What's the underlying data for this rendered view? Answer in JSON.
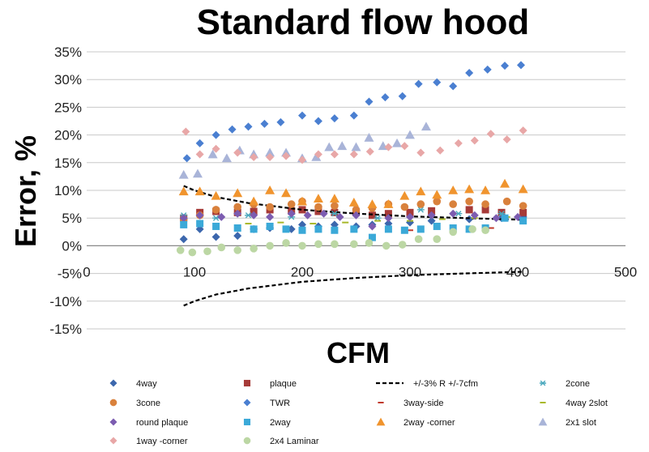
{
  "chart_data": {
    "type": "scatter",
    "title": "Standard flow hood",
    "xlabel": "CFM",
    "ylabel": "Error, %",
    "xlim": [
      0,
      500
    ],
    "ylim": [
      -15,
      35
    ],
    "x_ticks": [
      "0",
      "100",
      "200",
      "300",
      "400",
      "500"
    ],
    "y_ticks": [
      "35%",
      "30%",
      "25%",
      "20%",
      "15%",
      "10%",
      "5%",
      "0%",
      "-5%",
      "-10%",
      "-15%"
    ],
    "grid": "horizontal",
    "legend_position": "bottom",
    "series": [
      {
        "name": "4way",
        "marker": "diamond",
        "color": "#3c67ad",
        "x": [
          90,
          105,
          120,
          140,
          155,
          170,
          190,
          200,
          215,
          230,
          250,
          265,
          280,
          300,
          320,
          355,
          385,
          405
        ],
        "y": [
          1.2,
          3.0,
          1.6,
          1.8,
          3.0,
          3.2,
          3.0,
          3.8,
          3.5,
          3.8,
          3.5,
          3.8,
          4.0,
          4.2,
          4.5,
          4.8,
          5.0,
          5.2
        ]
      },
      {
        "name": "plaque",
        "marker": "square",
        "color": "#a63a38",
        "x": [
          90,
          105,
          120,
          140,
          155,
          170,
          190,
          200,
          215,
          230,
          250,
          265,
          280,
          300,
          320,
          355,
          370,
          385,
          405
        ],
        "y": [
          5.0,
          6.0,
          6.2,
          6.0,
          6.2,
          6.5,
          6.3,
          6.5,
          6.2,
          6.0,
          6.0,
          5.5,
          5.8,
          6.0,
          6.3,
          6.5,
          6.5,
          6.0,
          6.0
        ]
      },
      {
        "name": "+/-3% R +/-7cfm",
        "marker": "dash-line",
        "color": "#000000",
        "upper": {
          "x": [
            90,
            100,
            120,
            150,
            200,
            250,
            300,
            350,
            405
          ],
          "y": [
            10.8,
            10.0,
            8.8,
            7.7,
            6.5,
            5.8,
            5.3,
            5.0,
            4.7
          ]
        },
        "lower": {
          "x": [
            90,
            100,
            120,
            150,
            200,
            250,
            300,
            350,
            405
          ],
          "y": [
            -10.8,
            -10.0,
            -8.8,
            -7.7,
            -6.5,
            -5.8,
            -5.3,
            -5.0,
            -4.7
          ]
        }
      },
      {
        "name": "2cone",
        "marker": "asterisk",
        "color": "#4aa8bd",
        "x": [
          90,
          120,
          150,
          190,
          230,
          270,
          310,
          345,
          385
        ],
        "y": [
          5.5,
          5.0,
          5.5,
          5.2,
          5.8,
          5.0,
          6.5,
          5.8,
          5.8
        ]
      },
      {
        "name": "3cone",
        "marker": "circle",
        "color": "#d9813c",
        "x": [
          90,
          105,
          120,
          140,
          155,
          170,
          190,
          200,
          215,
          230,
          250,
          265,
          280,
          295,
          310,
          325,
          340,
          355,
          370,
          390,
          405
        ],
        "y": [
          4.8,
          5.5,
          6.5,
          7.0,
          7.5,
          7.0,
          7.5,
          8.0,
          7.0,
          7.2,
          6.5,
          6.8,
          7.5,
          7.0,
          7.5,
          8.0,
          7.5,
          8.0,
          7.5,
          8.0,
          7.2
        ]
      },
      {
        "name": "TWR",
        "marker": "diamond",
        "color": "#4a7fd1",
        "x": [
          93,
          105,
          120,
          135,
          150,
          165,
          180,
          200,
          215,
          230,
          248,
          262,
          277,
          293,
          308,
          325,
          340,
          355,
          372,
          388,
          403
        ],
        "y": [
          15.8,
          18.5,
          20.0,
          21.0,
          21.5,
          22.0,
          22.3,
          23.5,
          22.5,
          23.0,
          23.5,
          26.0,
          26.8,
          27.0,
          29.2,
          29.5,
          28.8,
          31.2,
          31.8,
          32.5,
          32.6
        ]
      },
      {
        "name": "3way-side",
        "marker": "dash",
        "color": "#c0392b",
        "x": [
          300,
          340,
          375
        ],
        "y": [
          2.8,
          3.5,
          3.2
        ]
      },
      {
        "name": "4way 2slot",
        "marker": "dash",
        "color": "#a8b82a",
        "x": [
          90,
          120,
          150,
          180,
          210,
          240,
          270,
          300,
          330,
          360,
          390
        ],
        "y": [
          3.5,
          3.8,
          4.0,
          4.2,
          4.0,
          4.2,
          4.5,
          4.5,
          4.8,
          5.0,
          5.2
        ]
      },
      {
        "name": "round plaque",
        "marker": "diamond",
        "color": "#7c5cb0",
        "x": [
          90,
          105,
          125,
          140,
          155,
          170,
          190,
          205,
          220,
          235,
          250,
          265,
          280,
          300,
          320,
          340,
          360,
          380,
          400
        ],
        "y": [
          5.0,
          5.5,
          5.2,
          5.8,
          5.5,
          5.2,
          5.8,
          5.5,
          5.8,
          5.2,
          5.5,
          3.5,
          5.0,
          5.2,
          5.5,
          5.8,
          5.5,
          5.0,
          5.2
        ]
      },
      {
        "name": "2way",
        "marker": "square",
        "color": "#3ba9d8",
        "x": [
          90,
          105,
          120,
          140,
          155,
          170,
          185,
          200,
          215,
          230,
          248,
          265,
          280,
          295,
          310,
          325,
          340,
          355,
          370,
          388,
          405
        ],
        "y": [
          3.8,
          4.0,
          3.5,
          3.2,
          3.0,
          3.5,
          3.0,
          2.8,
          3.0,
          2.8,
          3.0,
          1.5,
          3.0,
          2.8,
          3.0,
          3.5,
          3.2,
          3.0,
          3.2,
          5.0,
          4.5
        ]
      },
      {
        "name": "2way -corner",
        "marker": "triangle",
        "color": "#f0942e",
        "x": [
          90,
          105,
          120,
          140,
          155,
          170,
          185,
          200,
          215,
          230,
          248,
          265,
          280,
          295,
          310,
          325,
          340,
          355,
          370,
          388,
          405
        ],
        "y": [
          9.8,
          9.8,
          9.0,
          9.5,
          8.0,
          10.0,
          9.5,
          8.0,
          8.5,
          8.5,
          7.8,
          7.5,
          7.5,
          9.0,
          9.8,
          9.2,
          10.0,
          10.2,
          10.0,
          11.2,
          10.2
        ]
      },
      {
        "name": "2x1 slot",
        "marker": "triangle",
        "color": "#a9b4d8",
        "x": [
          90,
          103,
          117,
          130,
          142,
          155,
          170,
          185,
          200,
          213,
          225,
          237,
          250,
          262,
          275,
          288,
          300,
          315
        ],
        "y": [
          12.8,
          13.0,
          16.5,
          15.8,
          17.2,
          16.5,
          16.8,
          16.8,
          15.8,
          16.0,
          17.8,
          18.0,
          17.8,
          19.5,
          18.0,
          18.5,
          20.0,
          21.5
        ]
      },
      {
        "name": "1way -corner",
        "marker": "diamond",
        "color": "#e8a7a7",
        "x": [
          92,
          105,
          120,
          140,
          155,
          170,
          185,
          200,
          215,
          230,
          248,
          263,
          280,
          295,
          310,
          328,
          345,
          360,
          375,
          390,
          405
        ],
        "y": [
          20.6,
          16.5,
          17.5,
          16.8,
          16.0,
          16.0,
          16.2,
          15.5,
          16.5,
          16.5,
          16.5,
          17.0,
          17.8,
          18.0,
          16.8,
          17.2,
          18.5,
          19.0,
          20.2,
          19.2,
          20.8
        ]
      },
      {
        "name": "2x4 Laminar",
        "marker": "circle",
        "color": "#bcd7a4",
        "x": [
          87,
          98,
          112,
          125,
          140,
          155,
          170,
          185,
          200,
          215,
          230,
          248,
          262,
          278,
          293,
          308,
          325,
          340,
          358,
          370
        ],
        "y": [
          -0.8,
          -1.2,
          -1.0,
          -0.3,
          -0.8,
          -0.5,
          0.0,
          0.5,
          0.0,
          0.3,
          0.3,
          0.3,
          0.5,
          0.0,
          0.2,
          1.2,
          1.2,
          2.5,
          3.0,
          2.8
        ]
      }
    ]
  }
}
